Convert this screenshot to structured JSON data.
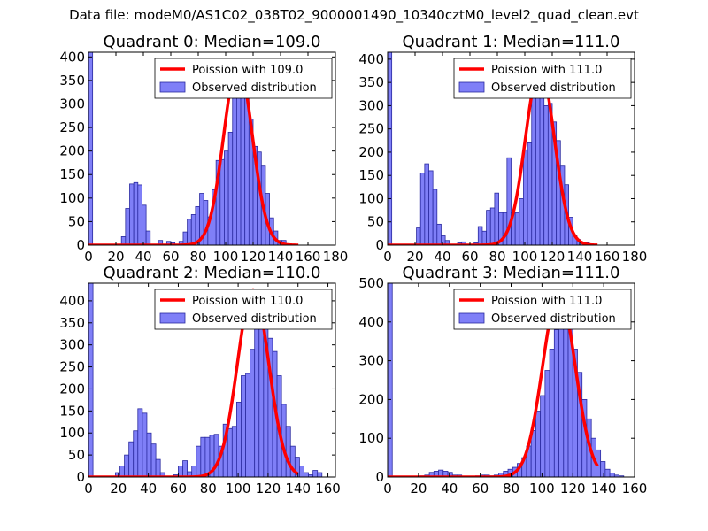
{
  "suptitle": "Data file: modeM0/AS1C02_038T02_9000001490_10340cztM0_level2_quad_clean.evt",
  "colors": {
    "bar_fill": "#7f7ff7",
    "bar_edge": "#2a2aa0",
    "curve": "#ff0000"
  },
  "chart_data": [
    {
      "type": "bar",
      "title": "Quadrant 0: Median=109.0",
      "xlim": [
        0,
        180
      ],
      "ylim": [
        0,
        410
      ],
      "xticks": [
        0,
        20,
        40,
        60,
        80,
        100,
        120,
        140,
        160,
        180
      ],
      "yticks": [
        0,
        50,
        100,
        150,
        200,
        250,
        300,
        350,
        400
      ],
      "legend": [
        "Poission with 109.0",
        "Observed distribution"
      ],
      "legend_position": "top-right",
      "bin_width": 3,
      "bins": [
        [
          0,
          410
        ],
        [
          3,
          0
        ],
        [
          24,
          18
        ],
        [
          27,
          78
        ],
        [
          30,
          130
        ],
        [
          33,
          133
        ],
        [
          36,
          128
        ],
        [
          39,
          85
        ],
        [
          42,
          30
        ],
        [
          45,
          0
        ],
        [
          48,
          0
        ],
        [
          51,
          10
        ],
        [
          54,
          0
        ],
        [
          57,
          8
        ],
        [
          60,
          5
        ],
        [
          63,
          0
        ],
        [
          66,
          8
        ],
        [
          69,
          28
        ],
        [
          72,
          55
        ],
        [
          75,
          65
        ],
        [
          78,
          82
        ],
        [
          81,
          110
        ],
        [
          84,
          95
        ],
        [
          87,
          60
        ],
        [
          90,
          118
        ],
        [
          93,
          180
        ],
        [
          96,
          182
        ],
        [
          99,
          200
        ],
        [
          102,
          240
        ],
        [
          105,
          325
        ],
        [
          108,
          352
        ],
        [
          111,
          360
        ],
        [
          114,
          342
        ],
        [
          117,
          268
        ],
        [
          120,
          210
        ],
        [
          123,
          198
        ],
        [
          126,
          168
        ],
        [
          129,
          110
        ],
        [
          132,
          58
        ],
        [
          135,
          30
        ],
        [
          138,
          10
        ],
        [
          141,
          10
        ]
      ],
      "poisson": {
        "mean": 109.0,
        "peak": 385
      }
    },
    {
      "type": "bar",
      "title": "Quadrant 1: Median=111.0",
      "xlim": [
        0,
        180
      ],
      "ylim": [
        0,
        415
      ],
      "xticks": [
        0,
        20,
        40,
        60,
        80,
        100,
        120,
        140,
        160,
        180
      ],
      "yticks": [
        0,
        50,
        100,
        150,
        200,
        250,
        300,
        350,
        400
      ],
      "legend": [
        "Poission with 111.0",
        "Observed distribution"
      ],
      "legend_position": "top-right",
      "bin_width": 3,
      "bins": [
        [
          0,
          415
        ],
        [
          3,
          0
        ],
        [
          21,
          37
        ],
        [
          24,
          155
        ],
        [
          27,
          175
        ],
        [
          30,
          160
        ],
        [
          33,
          120
        ],
        [
          36,
          45
        ],
        [
          39,
          20
        ],
        [
          42,
          10
        ],
        [
          45,
          0
        ],
        [
          48,
          0
        ],
        [
          51,
          5
        ],
        [
          54,
          7
        ],
        [
          57,
          0
        ],
        [
          60,
          2
        ],
        [
          63,
          5
        ],
        [
          66,
          40
        ],
        [
          69,
          30
        ],
        [
          72,
          75
        ],
        [
          75,
          80
        ],
        [
          78,
          112
        ],
        [
          81,
          70
        ],
        [
          84,
          70
        ],
        [
          87,
          188
        ],
        [
          90,
          70
        ],
        [
          93,
          70
        ],
        [
          96,
          100
        ],
        [
          99,
          205
        ],
        [
          102,
          220
        ],
        [
          105,
          330
        ],
        [
          108,
          375
        ],
        [
          111,
          345
        ],
        [
          114,
          300
        ],
        [
          117,
          305
        ],
        [
          120,
          265
        ],
        [
          123,
          225
        ],
        [
          126,
          170
        ],
        [
          129,
          130
        ],
        [
          132,
          60
        ],
        [
          135,
          20
        ],
        [
          138,
          12
        ],
        [
          141,
          5
        ],
        [
          144,
          5
        ]
      ],
      "poisson": {
        "mean": 111.0,
        "peak": 380
      }
    },
    {
      "type": "bar",
      "title": "Quadrant 2: Median=110.0",
      "xlim": [
        0,
        165
      ],
      "ylim": [
        0,
        440
      ],
      "xticks": [
        0,
        20,
        40,
        60,
        80,
        100,
        120,
        140,
        160
      ],
      "yticks": [
        0,
        50,
        100,
        150,
        200,
        250,
        300,
        350,
        400
      ],
      "legend": [
        "Poission with 110.0",
        "Observed distribution"
      ],
      "legend_position": "top-right",
      "bin_width": 3,
      "bins": [
        [
          0,
          440
        ],
        [
          3,
          0
        ],
        [
          18,
          10
        ],
        [
          21,
          25
        ],
        [
          24,
          50
        ],
        [
          27,
          80
        ],
        [
          30,
          105
        ],
        [
          33,
          155
        ],
        [
          36,
          145
        ],
        [
          39,
          100
        ],
        [
          42,
          75
        ],
        [
          45,
          40
        ],
        [
          48,
          10
        ],
        [
          51,
          0
        ],
        [
          54,
          0
        ],
        [
          57,
          5
        ],
        [
          60,
          25
        ],
        [
          63,
          37
        ],
        [
          66,
          12
        ],
        [
          69,
          25
        ],
        [
          72,
          70
        ],
        [
          75,
          90
        ],
        [
          78,
          90
        ],
        [
          81,
          95
        ],
        [
          84,
          97
        ],
        [
          87,
          70
        ],
        [
          90,
          120
        ],
        [
          93,
          110
        ],
        [
          96,
          115
        ],
        [
          99,
          170
        ],
        [
          102,
          230
        ],
        [
          105,
          235
        ],
        [
          108,
          290
        ],
        [
          111,
          350
        ],
        [
          114,
          370
        ],
        [
          117,
          340
        ],
        [
          120,
          315
        ],
        [
          123,
          285
        ],
        [
          126,
          230
        ],
        [
          129,
          165
        ],
        [
          132,
          115
        ],
        [
          135,
          70
        ],
        [
          138,
          45
        ],
        [
          141,
          25
        ],
        [
          144,
          10
        ],
        [
          147,
          5
        ],
        [
          150,
          15
        ],
        [
          153,
          10
        ]
      ],
      "poisson": {
        "mean": 110.0,
        "peak": 425
      }
    },
    {
      "type": "bar",
      "title": "Quadrant 3: Median=111.0",
      "xlim": [
        0,
        160
      ],
      "ylim": [
        0,
        500
      ],
      "xticks": [
        0,
        20,
        40,
        60,
        80,
        100,
        120,
        140,
        160
      ],
      "yticks": [
        0,
        100,
        200,
        300,
        400,
        500
      ],
      "legend": [
        "Poission with 111.0",
        "Observed distribution"
      ],
      "legend_position": "top-right",
      "bin_width": 3,
      "bins": [
        [
          0,
          500
        ],
        [
          3,
          0
        ],
        [
          21,
          3
        ],
        [
          24,
          5
        ],
        [
          27,
          12
        ],
        [
          30,
          15
        ],
        [
          33,
          18
        ],
        [
          36,
          15
        ],
        [
          39,
          12
        ],
        [
          42,
          5
        ],
        [
          45,
          5
        ],
        [
          48,
          0
        ],
        [
          51,
          0
        ],
        [
          54,
          2
        ],
        [
          57,
          3
        ],
        [
          60,
          5
        ],
        [
          63,
          5
        ],
        [
          66,
          3
        ],
        [
          69,
          5
        ],
        [
          72,
          10
        ],
        [
          75,
          15
        ],
        [
          78,
          20
        ],
        [
          81,
          25
        ],
        [
          84,
          35
        ],
        [
          87,
          50
        ],
        [
          90,
          80
        ],
        [
          93,
          120
        ],
        [
          96,
          170
        ],
        [
          99,
          210
        ],
        [
          102,
          275
        ],
        [
          105,
          330
        ],
        [
          108,
          380
        ],
        [
          111,
          420
        ],
        [
          114,
          430
        ],
        [
          117,
          400
        ],
        [
          120,
          330
        ],
        [
          123,
          270
        ],
        [
          126,
          200
        ],
        [
          129,
          150
        ],
        [
          132,
          100
        ],
        [
          135,
          70
        ],
        [
          138,
          40
        ],
        [
          141,
          20
        ],
        [
          144,
          10
        ],
        [
          147,
          5
        ],
        [
          150,
          3
        ]
      ],
      "poisson": {
        "mean": 111.0,
        "peak": 475
      }
    }
  ]
}
